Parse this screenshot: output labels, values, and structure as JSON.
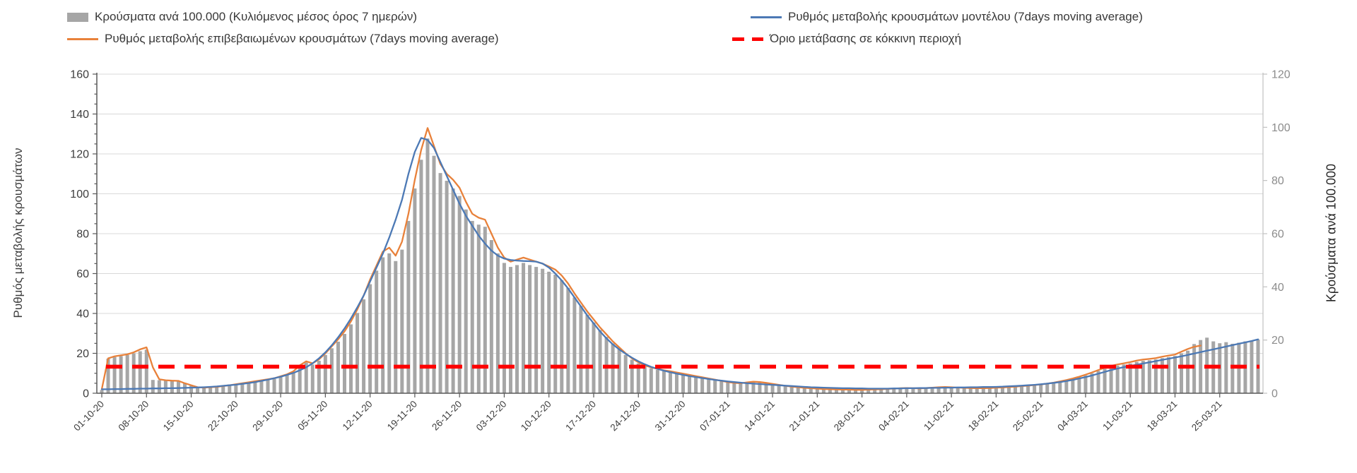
{
  "legend": {
    "items": [
      {
        "label": "Κρούσματα ανά 100.000 (Κυλιόμενος μέσος όρος 7 ημερών)",
        "swatch": "bar-swatch",
        "color": "#a6a6a6"
      },
      {
        "label": "Ρυθμός μεταβολής κρουσμάτων μοντέλου (7days moving average)",
        "swatch": "line-swatch",
        "color": "#4c79b5"
      },
      {
        "label": "Ρυθμός μεταβολής επιβεβαιωμένων κρουσμάτων (7days moving average)",
        "swatch": "line-swatch",
        "color": "#e8813a"
      },
      {
        "label": "Όριο μετάβασης σε κόκκινη περιοχή",
        "swatch": "dash-swatch",
        "color": "#fe0000"
      }
    ]
  },
  "left_axis": {
    "title": "Ρυθμός μεταβολής κρουσμάτων",
    "min": 0,
    "max": 160,
    "step": 20,
    "ticks": [
      0,
      20,
      40,
      60,
      80,
      100,
      120,
      140,
      160
    ]
  },
  "right_axis": {
    "title": "Κρούσματα ανά 100.000",
    "min": 0,
    "max": 120,
    "step": 20,
    "ticks": [
      0,
      20,
      40,
      60,
      80,
      100,
      120
    ]
  },
  "chart_data": {
    "type": "combo-bar-line",
    "grid": "horizontal-on",
    "legend_position": "top",
    "x_tick_labels": [
      "01-10-20",
      "08-10-20",
      "15-10-20",
      "22-10-20",
      "29-10-20",
      "05-11-20",
      "12-11-20",
      "19-11-20",
      "26-11-20",
      "03-12-20",
      "10-12-20",
      "17-12-20",
      "24-12-20",
      "31-12-20",
      "07-01-21",
      "14-01-21",
      "21-01-21",
      "28-01-21",
      "04-02-21",
      "11-02-21",
      "18-02-21",
      "25-02-21",
      "04-03-21",
      "11-03-21",
      "18-03-21",
      "25-03-21"
    ],
    "days_shown": 182,
    "x_tick_every_days": 7,
    "threshold": {
      "label": "Όριο μετάβασης σε κόκκινη περιοχή",
      "axis": "right",
      "value": 10,
      "color": "#fe0000",
      "style": "dashed"
    },
    "series": [
      {
        "name": "Κρούσματα ανά 100.000 (Κυλιόμενος μέσος όρος 7 ημερών)",
        "type": "bar",
        "axis": "right",
        "color": "#a6a6a6",
        "values": [
          1.2,
          13,
          13.6,
          14,
          14.4,
          15,
          15.8,
          16.4,
          5,
          4.9,
          4.8,
          4.7,
          4.6,
          3.7,
          2.9,
          2.2,
          2,
          2.2,
          2.3,
          2.6,
          2.9,
          3.2,
          3.6,
          4,
          4.3,
          4.7,
          5,
          5.4,
          6.1,
          6.8,
          7.9,
          10,
          11.5,
          10.8,
          12.2,
          14.4,
          16.9,
          19.4,
          22.3,
          25.9,
          30.2,
          35.3,
          41,
          46.1,
          51.1,
          52.6,
          49.7,
          54,
          64.8,
          77,
          87.8,
          95.8,
          89.3,
          82.8,
          79.9,
          77,
          74.2,
          69.1,
          64.8,
          63.4,
          62.6,
          57.6,
          52.6,
          49,
          47.5,
          48.2,
          49,
          48.2,
          47.5,
          46.8,
          45.7,
          44.6,
          42.5,
          39.6,
          36,
          32.8,
          29.5,
          26.6,
          23.8,
          21.2,
          18.7,
          16.6,
          14.4,
          12.6,
          11.2,
          10.1,
          9.4,
          8.8,
          8.3,
          7.9,
          7.5,
          7.1,
          6.6,
          6.2,
          5.8,
          5.3,
          4.9,
          4.5,
          4,
          3.7,
          3.6,
          3.9,
          4.2,
          4,
          3.7,
          3.4,
          3,
          2.7,
          2.4,
          2.2,
          1.9,
          1.8,
          1.7,
          1.5,
          1.4,
          1.4,
          1.3,
          1.3,
          1.2,
          1.2,
          1.3,
          1.4,
          1.4,
          1.6,
          1.7,
          1.8,
          1.9,
          1.8,
          1.7,
          1.9,
          2,
          2.2,
          2.2,
          2.2,
          2,
          1.9,
          1.9,
          1.8,
          1.8,
          1.9,
          2,
          2.1,
          2.2,
          2.4,
          2.6,
          2.7,
          3,
          3.2,
          3.5,
          3.8,
          4.2,
          4.8,
          5.3,
          6,
          6.7,
          7.5,
          8.4,
          9.2,
          9.9,
          10.4,
          10.8,
          11.2,
          11.8,
          12.2,
          12.4,
          12.7,
          13.2,
          13.6,
          14,
          15,
          16,
          18.5,
          20,
          20.9,
          19.5,
          18.8,
          19.2,
          18.6,
          19,
          19.5,
          19.8,
          20.2
        ]
      },
      {
        "name": "Ρυθμός μεταβολής κρουσμάτων μοντέλου (7days moving average)",
        "type": "line",
        "axis": "left",
        "color": "#4c79b5",
        "values": [
          2,
          2,
          2.1,
          2.1,
          2.2,
          2.2,
          2.3,
          2.3,
          2.4,
          2.4,
          2.5,
          2.5,
          2.6,
          2.7,
          2.8,
          2.9,
          3,
          3.2,
          3.4,
          3.7,
          4,
          4.3,
          4.7,
          5.1,
          5.6,
          6.2,
          6.8,
          7.5,
          8.3,
          9.2,
          10.2,
          11.5,
          13,
          15,
          17.5,
          20.5,
          24,
          28,
          32.5,
          37.5,
          43,
          49,
          56,
          63,
          70,
          78,
          87,
          97,
          110,
          121,
          128,
          127,
          123,
          116,
          109,
          102,
          95,
          89,
          84,
          79,
          75,
          71.5,
          69,
          67.5,
          66.8,
          66.5,
          66.3,
          66.2,
          66,
          65,
          63,
          60,
          56.5,
          52.5,
          48,
          43.5,
          39,
          35,
          31,
          27.5,
          24.5,
          22,
          19.8,
          17.8,
          16,
          14.5,
          13.2,
          12.2,
          11.3,
          10.5,
          9.8,
          9.2,
          8.6,
          8.1,
          7.6,
          7.1,
          6.7,
          6.3,
          5.9,
          5.6,
          5.3,
          5,
          4.8,
          4.6,
          4.4,
          4.2,
          4,
          3.8,
          3.6,
          3.4,
          3.2,
          3,
          2.9,
          2.8,
          2.7,
          2.6,
          2.5,
          2.5,
          2.4,
          2.4,
          2.3,
          2.3,
          2.3,
          2.3,
          2.4,
          2.4,
          2.5,
          2.5,
          2.6,
          2.6,
          2.7,
          2.7,
          2.8,
          2.8,
          2.9,
          2.9,
          3,
          3,
          3.1,
          3.1,
          3.2,
          3.3,
          3.5,
          3.6,
          3.8,
          4,
          4.2,
          4.5,
          4.8,
          5.2,
          5.6,
          6.1,
          6.7,
          7.4,
          8.1,
          8.9,
          9.8,
          10.7,
          11.6,
          12.4,
          13.1,
          13.7,
          14.3,
          14.9,
          15.5,
          16.1,
          16.7,
          17.3,
          17.9,
          18.5,
          19.2,
          19.9,
          20.6,
          21.3,
          22,
          22.7,
          23.4,
          24.1,
          24.8,
          25.5,
          26.2,
          27
        ]
      },
      {
        "name": "Ρυθμός μεταβολής επιβεβαιωμένων κρουσμάτων (7days moving average)",
        "type": "line",
        "axis": "left",
        "color": "#e8813a",
        "values": [
          2,
          17.5,
          18.5,
          19,
          19.5,
          20.5,
          22,
          23,
          13,
          7,
          6.5,
          6.3,
          6.2,
          5,
          4,
          3,
          2.8,
          3,
          3.2,
          3.6,
          4,
          4.5,
          5,
          5.5,
          6,
          6.5,
          7,
          7.5,
          8.5,
          9.5,
          11,
          14,
          16,
          15,
          17,
          20,
          23.5,
          27,
          31,
          36,
          42,
          49,
          57,
          64,
          71,
          73,
          69,
          76,
          90,
          107,
          122,
          133,
          124,
          115,
          110,
          107,
          103,
          96,
          90,
          88,
          87,
          80,
          73,
          68,
          66,
          67,
          68,
          67,
          66,
          65,
          63.5,
          62,
          59,
          55,
          50,
          45.5,
          41,
          37,
          33,
          29.5,
          26,
          23,
          20,
          17.5,
          15.5,
          14,
          13,
          12.2,
          11.5,
          11,
          10.4,
          9.8,
          9.2,
          8.6,
          8,
          7.4,
          6.8,
          6.2,
          5.6,
          5.2,
          5,
          5.4,
          5.8,
          5.6,
          5.2,
          4.7,
          4.2,
          3.7,
          3.3,
          3,
          2.7,
          2.5,
          2.3,
          2.1,
          2,
          1.9,
          1.8,
          1.8,
          1.7,
          1.7,
          1.8,
          1.9,
          2,
          2.2,
          2.3,
          2.5,
          2.6,
          2.5,
          2.4,
          2.6,
          2.8,
          3,
          3.1,
          3,
          2.8,
          2.7,
          2.6,
          2.5,
          2.5,
          2.6,
          2.8,
          2.9,
          3.1,
          3.3,
          3.6,
          3.8,
          4.1,
          4.4,
          4.8,
          5.3,
          5.9,
          6.6,
          7.4,
          8.3,
          9.3,
          10.4,
          11.6,
          12.8,
          13.7,
          14.4,
          15,
          15.6,
          16.4,
          16.9,
          17.2,
          17.6,
          18.3,
          18.9,
          19.4,
          20.8,
          22.2,
          23.3,
          23.9,
          null,
          null,
          null,
          null,
          null,
          null,
          null,
          null,
          null
        ]
      }
    ]
  }
}
